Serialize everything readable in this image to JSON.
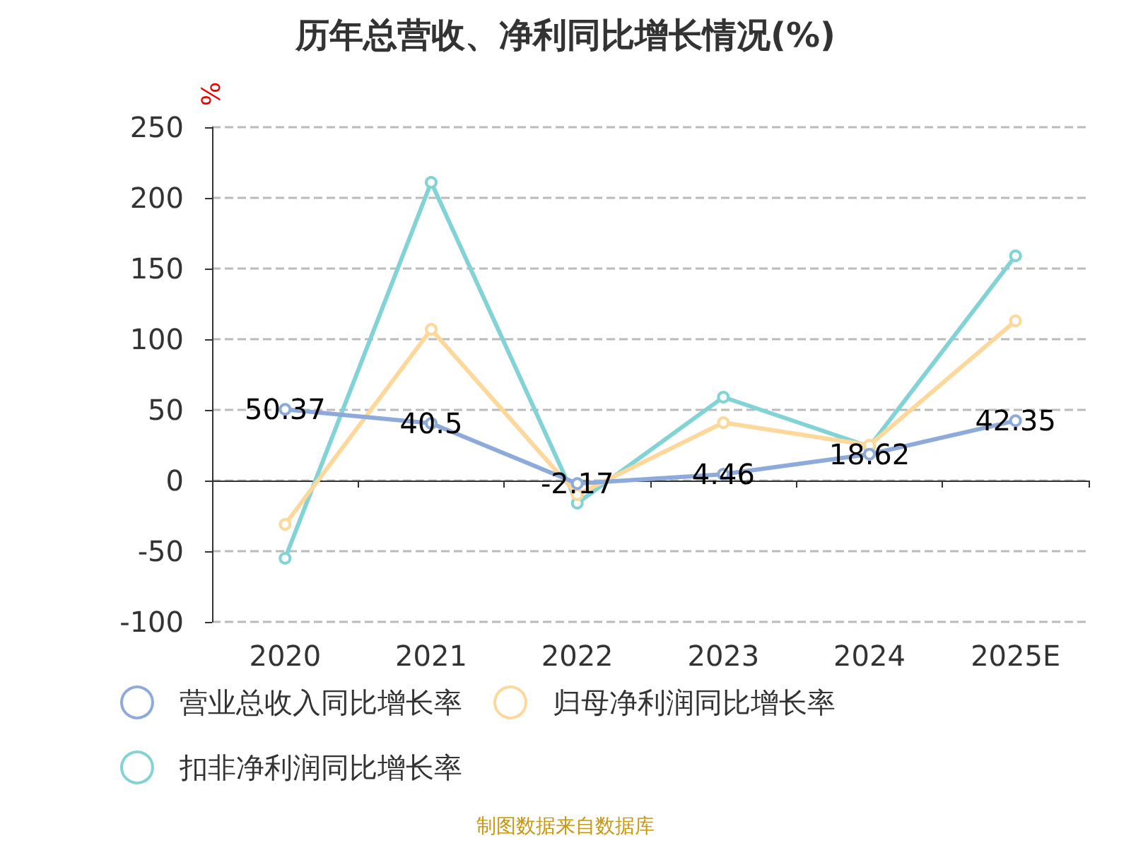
{
  "chart_data": {
    "type": "line",
    "title": "历年总营收、净利同比增长情况(%)",
    "ylabel": "%",
    "categories": [
      "2020",
      "2021",
      "2022",
      "2023",
      "2024",
      "2025E"
    ],
    "series": [
      {
        "name": "营业总收入同比增长率",
        "color": "#8eaadb",
        "values": [
          50.37,
          40.5,
          -2.17,
          4.46,
          18.62,
          42.35
        ],
        "value_labels": [
          "50.37",
          "40.5",
          "-2.17",
          "4.46",
          "18.62",
          "42.35"
        ]
      },
      {
        "name": "归母净利润同比增长率",
        "color": "#fdd89a",
        "values": [
          -31,
          107,
          -10,
          41,
          25,
          113
        ]
      },
      {
        "name": "扣非净利润同比增长率",
        "color": "#82d3d5",
        "values": [
          -55,
          211,
          -16,
          59,
          24,
          159
        ]
      }
    ],
    "ylim": [
      -100,
      250
    ],
    "yticks": [
      -100,
      -50,
      0,
      50,
      100,
      150,
      200,
      250
    ],
    "grid": "y",
    "legend": "bottom",
    "marker": "circle",
    "line_style": "solid",
    "annotations": [
      "制图数据来自数据库"
    ]
  }
}
